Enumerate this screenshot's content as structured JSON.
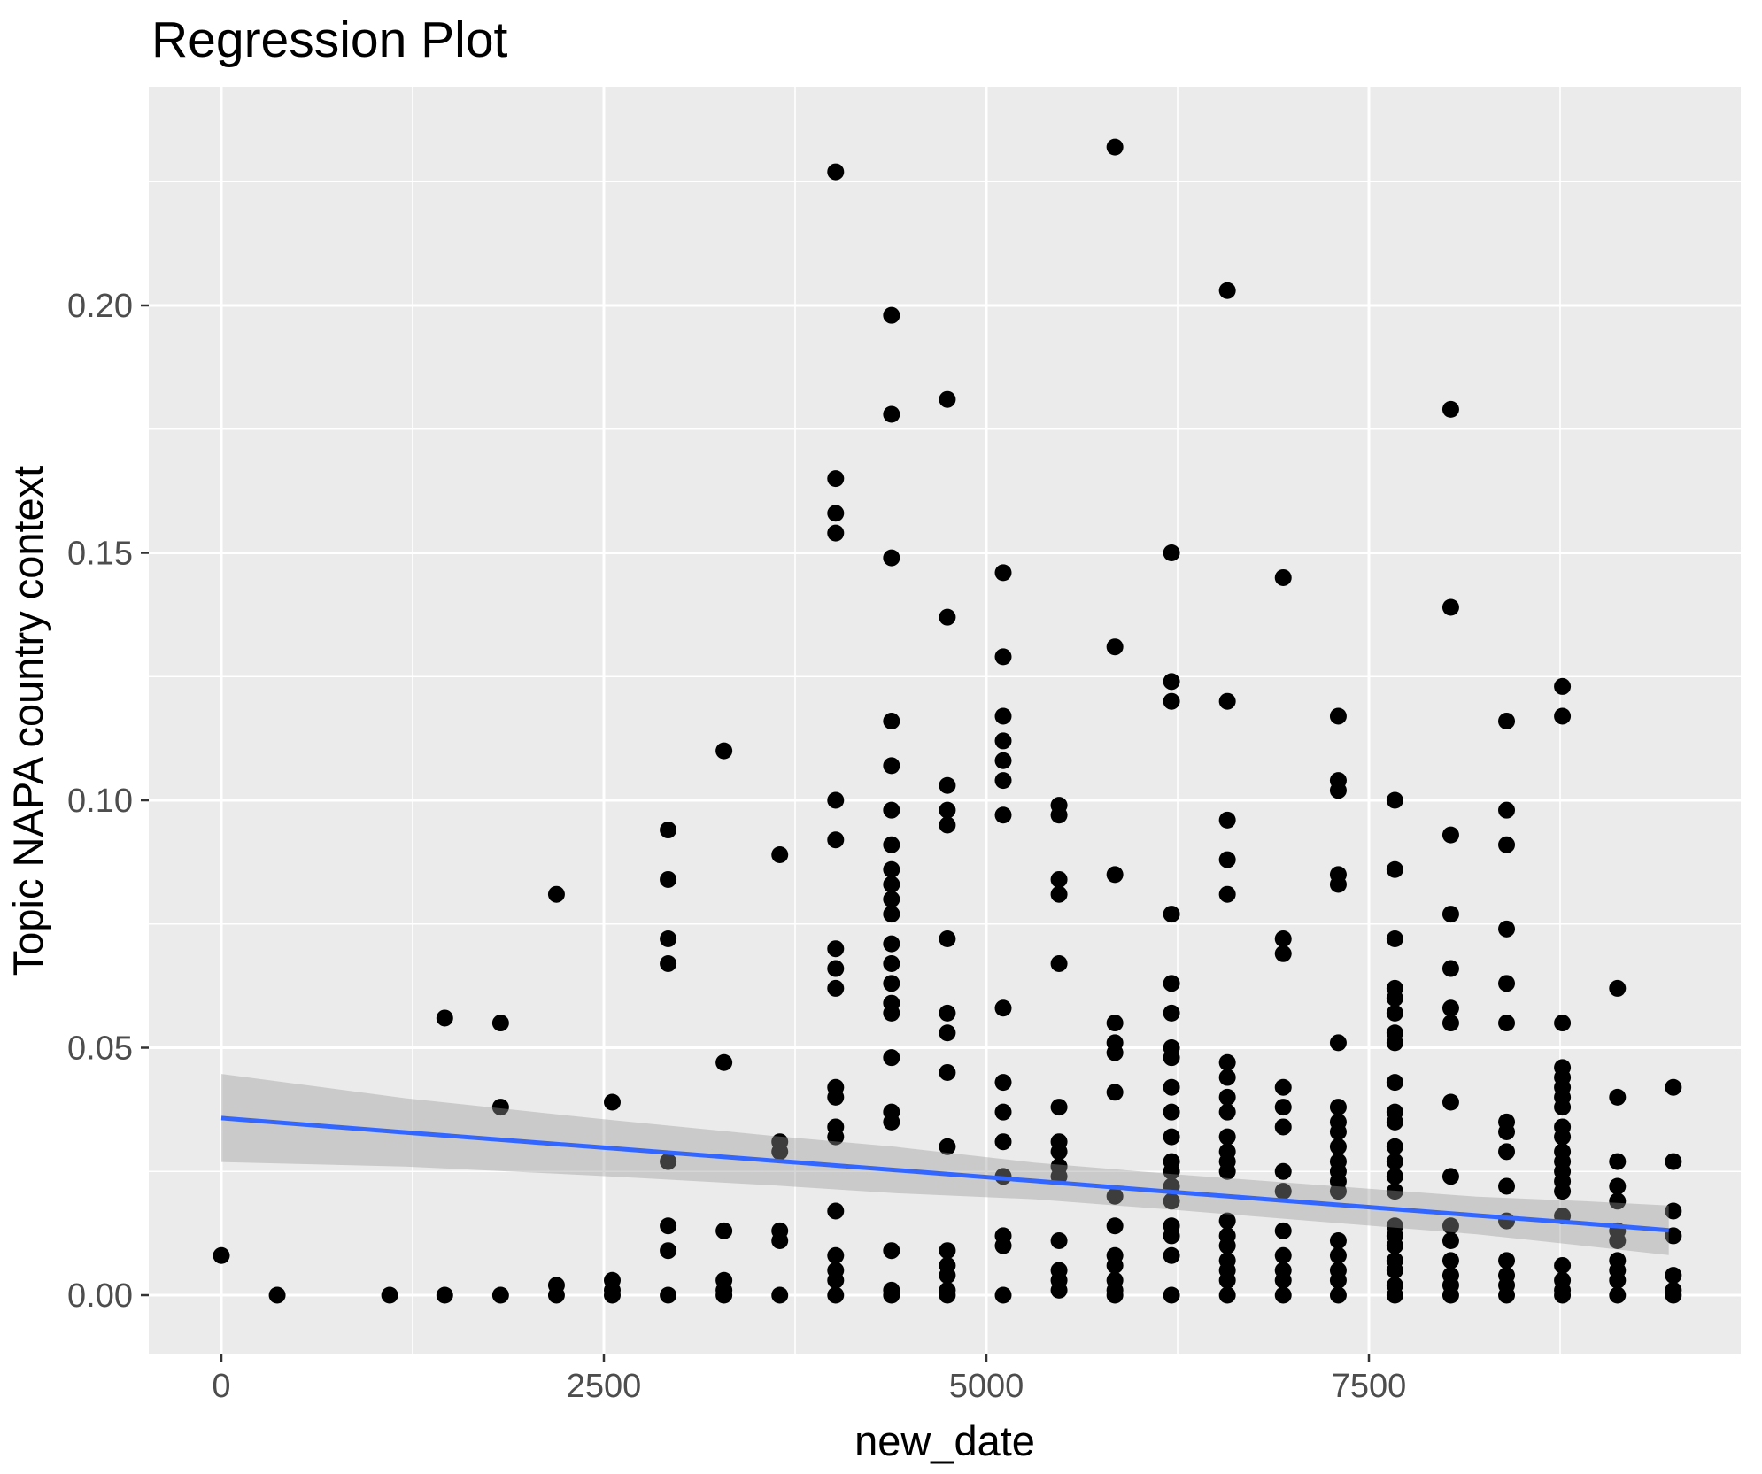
{
  "chart_data": {
    "type": "scatter",
    "title": "Regression Plot",
    "xlabel": "new_date",
    "ylabel": "Topic NAPA country context",
    "legend": "none",
    "grid": "white major and minor gridlines on grey panel",
    "x_axis": {
      "tick_labels": [
        "0",
        "2500",
        "5000",
        "7500"
      ],
      "tick_values": [
        0,
        2500,
        5000,
        7500
      ],
      "minor_tick_values": [
        1250,
        3750,
        6250,
        8750
      ],
      "range": [
        -475,
        9930
      ]
    },
    "y_axis": {
      "tick_labels": [
        "0.00",
        "0.05",
        "0.10",
        "0.15",
        "0.20"
      ],
      "tick_values": [
        0,
        0.05,
        0.1,
        0.15,
        0.2
      ],
      "minor_tick_values": [
        0.025,
        0.075,
        0.125,
        0.175,
        0.225
      ],
      "range": [
        -0.012,
        0.244
      ]
    },
    "colors": {
      "background": "#FFFFFF",
      "panel": "#EBEBEB",
      "grid": "#FFFFFF",
      "point": "#000000",
      "regression_line": "#3366FF",
      "ci_ribbon": "rgba(153,153,153,0.4)",
      "tick_text": "#4D4D4D",
      "tick_mark": "#333333",
      "title_text": "#000000"
    },
    "regression": {
      "x": [
        0,
        1200,
        2420,
        3600,
        4400,
        5312,
        6200,
        7200,
        8206,
        8900,
        9460
      ],
      "fit": [
        0.0358,
        0.0329,
        0.03,
        0.0272,
        0.0253,
        0.0231,
        0.0209,
        0.0185,
        0.0161,
        0.0145,
        0.0131
      ],
      "ci_upper": [
        0.0447,
        0.0398,
        0.0358,
        0.0322,
        0.03,
        0.0268,
        0.0245,
        0.0222,
        0.0199,
        0.019,
        0.0181
      ],
      "ci_lower": [
        0.0269,
        0.026,
        0.0242,
        0.0222,
        0.0206,
        0.0194,
        0.0173,
        0.0148,
        0.0123,
        0.01,
        0.0081
      ]
    },
    "points": [
      [
        0,
        0.008
      ],
      [
        365,
        0
      ],
      [
        1100,
        0
      ],
      [
        1460,
        0.056
      ],
      [
        1460,
        0
      ],
      [
        1825,
        0.055
      ],
      [
        1825,
        0.038
      ],
      [
        1825,
        0
      ],
      [
        2190,
        0.081
      ],
      [
        2190,
        0.002
      ],
      [
        2190,
        0
      ],
      [
        2555,
        0.039
      ],
      [
        2555,
        0.003
      ],
      [
        2555,
        0.001
      ],
      [
        2555,
        0
      ],
      [
        2920,
        0.094
      ],
      [
        2920,
        0.084
      ],
      [
        2920,
        0.072
      ],
      [
        2920,
        0.067
      ],
      [
        2920,
        0.027
      ],
      [
        2920,
        0.014
      ],
      [
        2920,
        0.009
      ],
      [
        2920,
        0
      ],
      [
        3285,
        0.11
      ],
      [
        3285,
        0.047
      ],
      [
        3285,
        0.013
      ],
      [
        3285,
        0.003
      ],
      [
        3285,
        0.001
      ],
      [
        3285,
        0
      ],
      [
        3650,
        0.089
      ],
      [
        3650,
        0.031
      ],
      [
        3650,
        0.029
      ],
      [
        3650,
        0.013
      ],
      [
        3650,
        0.011
      ],
      [
        3650,
        0
      ],
      [
        4015,
        0.227
      ],
      [
        4015,
        0.165
      ],
      [
        4015,
        0.158
      ],
      [
        4015,
        0.154
      ],
      [
        4015,
        0.1
      ],
      [
        4015,
        0.092
      ],
      [
        4015,
        0.07
      ],
      [
        4015,
        0.066
      ],
      [
        4015,
        0.062
      ],
      [
        4015,
        0.042
      ],
      [
        4015,
        0.04
      ],
      [
        4015,
        0.034
      ],
      [
        4015,
        0.032
      ],
      [
        4015,
        0.017
      ],
      [
        4015,
        0.008
      ],
      [
        4015,
        0.005
      ],
      [
        4015,
        0.003
      ],
      [
        4015,
        0
      ],
      [
        4380,
        0.198
      ],
      [
        4380,
        0.178
      ],
      [
        4380,
        0.149
      ],
      [
        4380,
        0.116
      ],
      [
        4380,
        0.107
      ],
      [
        4380,
        0.098
      ],
      [
        4380,
        0.091
      ],
      [
        4380,
        0.086
      ],
      [
        4380,
        0.083
      ],
      [
        4380,
        0.08
      ],
      [
        4380,
        0.077
      ],
      [
        4380,
        0.071
      ],
      [
        4380,
        0.067
      ],
      [
        4380,
        0.063
      ],
      [
        4380,
        0.059
      ],
      [
        4380,
        0.057
      ],
      [
        4380,
        0.048
      ],
      [
        4380,
        0.037
      ],
      [
        4380,
        0.035
      ],
      [
        4380,
        0.009
      ],
      [
        4380,
        0.001
      ],
      [
        4380,
        0
      ],
      [
        4745,
        0.181
      ],
      [
        4745,
        0.137
      ],
      [
        4745,
        0.103
      ],
      [
        4745,
        0.098
      ],
      [
        4745,
        0.095
      ],
      [
        4745,
        0.072
      ],
      [
        4745,
        0.057
      ],
      [
        4745,
        0.053
      ],
      [
        4745,
        0.045
      ],
      [
        4745,
        0.03
      ],
      [
        4745,
        0.009
      ],
      [
        4745,
        0.006
      ],
      [
        4745,
        0.004
      ],
      [
        4745,
        0.001
      ],
      [
        4745,
        0
      ],
      [
        5110,
        0.146
      ],
      [
        5110,
        0.129
      ],
      [
        5110,
        0.117
      ],
      [
        5110,
        0.112
      ],
      [
        5110,
        0.108
      ],
      [
        5110,
        0.104
      ],
      [
        5110,
        0.097
      ],
      [
        5110,
        0.058
      ],
      [
        5110,
        0.043
      ],
      [
        5110,
        0.037
      ],
      [
        5110,
        0.031
      ],
      [
        5110,
        0.024
      ],
      [
        5110,
        0.012
      ],
      [
        5110,
        0.01
      ],
      [
        5110,
        0
      ],
      [
        5475,
        0.099
      ],
      [
        5475,
        0.097
      ],
      [
        5475,
        0.084
      ],
      [
        5475,
        0.081
      ],
      [
        5475,
        0.067
      ],
      [
        5475,
        0.038
      ],
      [
        5475,
        0.031
      ],
      [
        5475,
        0.029
      ],
      [
        5475,
        0.026
      ],
      [
        5475,
        0.024
      ],
      [
        5475,
        0.011
      ],
      [
        5475,
        0.005
      ],
      [
        5475,
        0.003
      ],
      [
        5475,
        0.001
      ],
      [
        5840,
        0.232
      ],
      [
        5840,
        0.131
      ],
      [
        5840,
        0.085
      ],
      [
        5840,
        0.055
      ],
      [
        5840,
        0.051
      ],
      [
        5840,
        0.049
      ],
      [
        5840,
        0.041
      ],
      [
        5840,
        0.02
      ],
      [
        5840,
        0.014
      ],
      [
        5840,
        0.008
      ],
      [
        5840,
        0.006
      ],
      [
        5840,
        0.003
      ],
      [
        5840,
        0.001
      ],
      [
        5840,
        0
      ],
      [
        6210,
        0.15
      ],
      [
        6210,
        0.124
      ],
      [
        6210,
        0.12
      ],
      [
        6210,
        0.077
      ],
      [
        6210,
        0.063
      ],
      [
        6210,
        0.057
      ],
      [
        6210,
        0.05
      ],
      [
        6210,
        0.048
      ],
      [
        6210,
        0.042
      ],
      [
        6210,
        0.037
      ],
      [
        6210,
        0.032
      ],
      [
        6210,
        0.027
      ],
      [
        6210,
        0.025
      ],
      [
        6210,
        0.022
      ],
      [
        6210,
        0.019
      ],
      [
        6210,
        0.014
      ],
      [
        6210,
        0.012
      ],
      [
        6210,
        0.008
      ],
      [
        6210,
        0
      ],
      [
        6575,
        0.203
      ],
      [
        6575,
        0.12
      ],
      [
        6575,
        0.096
      ],
      [
        6575,
        0.088
      ],
      [
        6575,
        0.081
      ],
      [
        6575,
        0.047
      ],
      [
        6575,
        0.044
      ],
      [
        6575,
        0.04
      ],
      [
        6575,
        0.037
      ],
      [
        6575,
        0.032
      ],
      [
        6575,
        0.029
      ],
      [
        6575,
        0.027
      ],
      [
        6575,
        0.025
      ],
      [
        6575,
        0.015
      ],
      [
        6575,
        0.012
      ],
      [
        6575,
        0.01
      ],
      [
        6575,
        0.007
      ],
      [
        6575,
        0.005
      ],
      [
        6575,
        0.003
      ],
      [
        6575,
        0
      ],
      [
        6940,
        0.145
      ],
      [
        6940,
        0.072
      ],
      [
        6940,
        0.069
      ],
      [
        6940,
        0.042
      ],
      [
        6940,
        0.038
      ],
      [
        6940,
        0.034
      ],
      [
        6940,
        0.025
      ],
      [
        6940,
        0.021
      ],
      [
        6940,
        0.013
      ],
      [
        6940,
        0.008
      ],
      [
        6940,
        0.005
      ],
      [
        6940,
        0.003
      ],
      [
        6940,
        0
      ],
      [
        7300,
        0.117
      ],
      [
        7300,
        0.104
      ],
      [
        7300,
        0.102
      ],
      [
        7300,
        0.085
      ],
      [
        7300,
        0.083
      ],
      [
        7300,
        0.051
      ],
      [
        7300,
        0.038
      ],
      [
        7300,
        0.035
      ],
      [
        7300,
        0.033
      ],
      [
        7300,
        0.03
      ],
      [
        7300,
        0.027
      ],
      [
        7300,
        0.025
      ],
      [
        7300,
        0.023
      ],
      [
        7300,
        0.021
      ],
      [
        7300,
        0.011
      ],
      [
        7300,
        0.008
      ],
      [
        7300,
        0.005
      ],
      [
        7300,
        0.003
      ],
      [
        7300,
        0
      ],
      [
        7670,
        0.1
      ],
      [
        7670,
        0.086
      ],
      [
        7670,
        0.072
      ],
      [
        7670,
        0.062
      ],
      [
        7670,
        0.06
      ],
      [
        7670,
        0.057
      ],
      [
        7670,
        0.053
      ],
      [
        7670,
        0.051
      ],
      [
        7670,
        0.043
      ],
      [
        7670,
        0.037
      ],
      [
        7670,
        0.035
      ],
      [
        7670,
        0.03
      ],
      [
        7670,
        0.027
      ],
      [
        7670,
        0.024
      ],
      [
        7670,
        0.021
      ],
      [
        7670,
        0.014
      ],
      [
        7670,
        0.012
      ],
      [
        7670,
        0.01
      ],
      [
        7670,
        0.007
      ],
      [
        7670,
        0.005
      ],
      [
        7670,
        0.002
      ],
      [
        7670,
        0
      ],
      [
        8035,
        0.179
      ],
      [
        8035,
        0.139
      ],
      [
        8035,
        0.093
      ],
      [
        8035,
        0.077
      ],
      [
        8035,
        0.066
      ],
      [
        8035,
        0.058
      ],
      [
        8035,
        0.055
      ],
      [
        8035,
        0.039
      ],
      [
        8035,
        0.024
      ],
      [
        8035,
        0.014
      ],
      [
        8035,
        0.011
      ],
      [
        8035,
        0.007
      ],
      [
        8035,
        0.004
      ],
      [
        8035,
        0.002
      ],
      [
        8035,
        0
      ],
      [
        8400,
        0.116
      ],
      [
        8400,
        0.098
      ],
      [
        8400,
        0.091
      ],
      [
        8400,
        0.074
      ],
      [
        8400,
        0.063
      ],
      [
        8400,
        0.055
      ],
      [
        8400,
        0.035
      ],
      [
        8400,
        0.033
      ],
      [
        8400,
        0.029
      ],
      [
        8400,
        0.022
      ],
      [
        8400,
        0.015
      ],
      [
        8400,
        0.007
      ],
      [
        8400,
        0.004
      ],
      [
        8400,
        0.002
      ],
      [
        8400,
        0
      ],
      [
        8765,
        0.123
      ],
      [
        8765,
        0.117
      ],
      [
        8765,
        0.055
      ],
      [
        8765,
        0.046
      ],
      [
        8765,
        0.044
      ],
      [
        8765,
        0.042
      ],
      [
        8765,
        0.04
      ],
      [
        8765,
        0.038
      ],
      [
        8765,
        0.034
      ],
      [
        8765,
        0.032
      ],
      [
        8765,
        0.029
      ],
      [
        8765,
        0.027
      ],
      [
        8765,
        0.025
      ],
      [
        8765,
        0.023
      ],
      [
        8765,
        0.021
      ],
      [
        8765,
        0.016
      ],
      [
        8765,
        0.006
      ],
      [
        8765,
        0.003
      ],
      [
        8765,
        0.001
      ],
      [
        8765,
        0
      ],
      [
        9125,
        0.062
      ],
      [
        9125,
        0.04
      ],
      [
        9125,
        0.027
      ],
      [
        9125,
        0.022
      ],
      [
        9125,
        0.019
      ],
      [
        9125,
        0.013
      ],
      [
        9125,
        0.011
      ],
      [
        9125,
        0.007
      ],
      [
        9125,
        0.005
      ],
      [
        9125,
        0.003
      ],
      [
        9125,
        0
      ],
      [
        9490,
        0.042
      ],
      [
        9490,
        0.027
      ],
      [
        9490,
        0.017
      ],
      [
        9490,
        0.012
      ],
      [
        9490,
        0.004
      ],
      [
        9490,
        0.001
      ],
      [
        9490,
        0
      ]
    ]
  }
}
